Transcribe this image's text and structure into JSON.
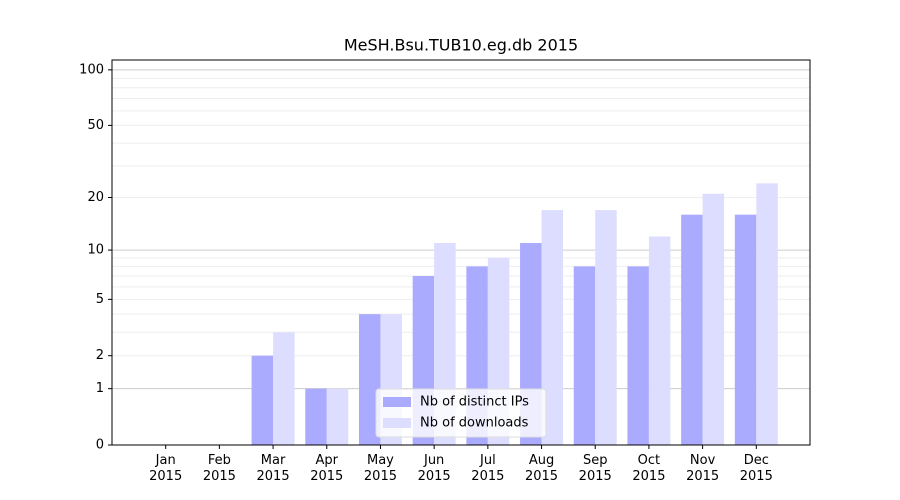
{
  "chart_data": {
    "type": "bar",
    "title": "MeSH.Bsu.TUB10.eg.db 2015",
    "categories": [
      "Jan\n2015",
      "Feb\n2015",
      "Mar\n2015",
      "Apr\n2015",
      "May\n2015",
      "Jun\n2015",
      "Jul\n2015",
      "Aug\n2015",
      "Sep\n2015",
      "Oct\n2015",
      "Nov\n2015",
      "Dec\n2015"
    ],
    "series": [
      {
        "name": "Nb of distinct IPs",
        "color": "#aaaaff",
        "values": [
          0,
          0,
          2,
          1,
          4,
          7,
          8,
          11,
          8,
          8,
          16,
          16
        ]
      },
      {
        "name": "Nb of downloads",
        "color": "#ddddff",
        "values": [
          0,
          0,
          3,
          1,
          4,
          11,
          9,
          17,
          17,
          12,
          21,
          24
        ]
      }
    ],
    "y_scale": "log1p",
    "ylim": [
      0,
      113
    ],
    "yticks": [
      0,
      1,
      2,
      5,
      10,
      20,
      50,
      100
    ],
    "minor_yticks": [
      3,
      4,
      6,
      7,
      8,
      9,
      30,
      40,
      60,
      70,
      80,
      90
    ],
    "grid": true,
    "legend": "lower center"
  }
}
